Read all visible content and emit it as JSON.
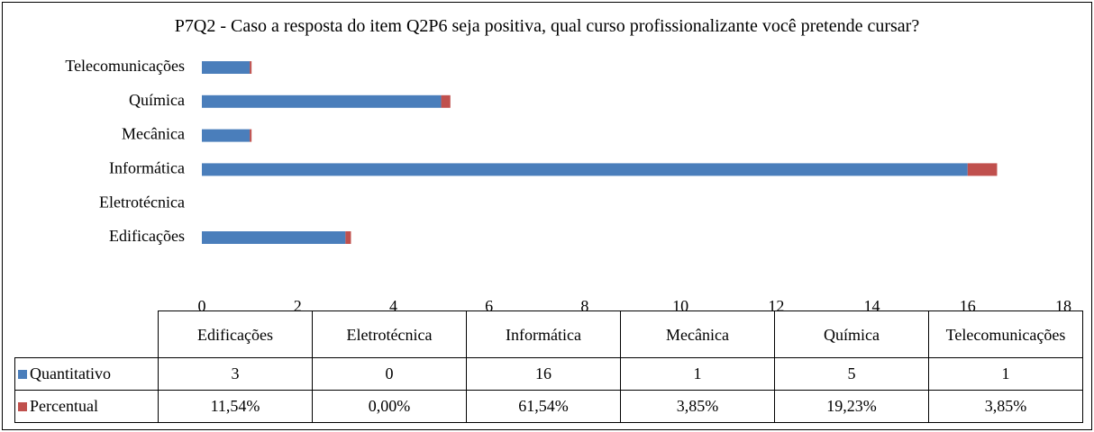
{
  "chart_data": {
    "type": "bar",
    "horizontal": true,
    "stacked": true,
    "title": "P7Q2 - Caso a resposta do item Q2P6 seja positiva, qual curso profissionalizante você pretende cursar?",
    "categories": [
      "Edificações",
      "Eletrotécnica",
      "Informática",
      "Mecânica",
      "Química",
      "Telecomunicações"
    ],
    "series": [
      {
        "name": "Quantitativo",
        "color": "#4a7ebb",
        "values": [
          3,
          0,
          16,
          1,
          5,
          1
        ]
      },
      {
        "name": "Percentual",
        "color": "#c0504d",
        "values": [
          0.1154,
          0,
          0.6154,
          0.0385,
          0.1923,
          0.0385
        ],
        "value_labels": [
          "11,54%",
          "0,00%",
          "61,54%",
          "3,85%",
          "19,23%",
          "3,85%"
        ]
      }
    ],
    "xlim": [
      0,
      18
    ],
    "xticks": [
      0,
      2,
      4,
      6,
      8,
      10,
      12,
      14,
      16,
      18
    ],
    "grid": false,
    "data_table": true
  }
}
